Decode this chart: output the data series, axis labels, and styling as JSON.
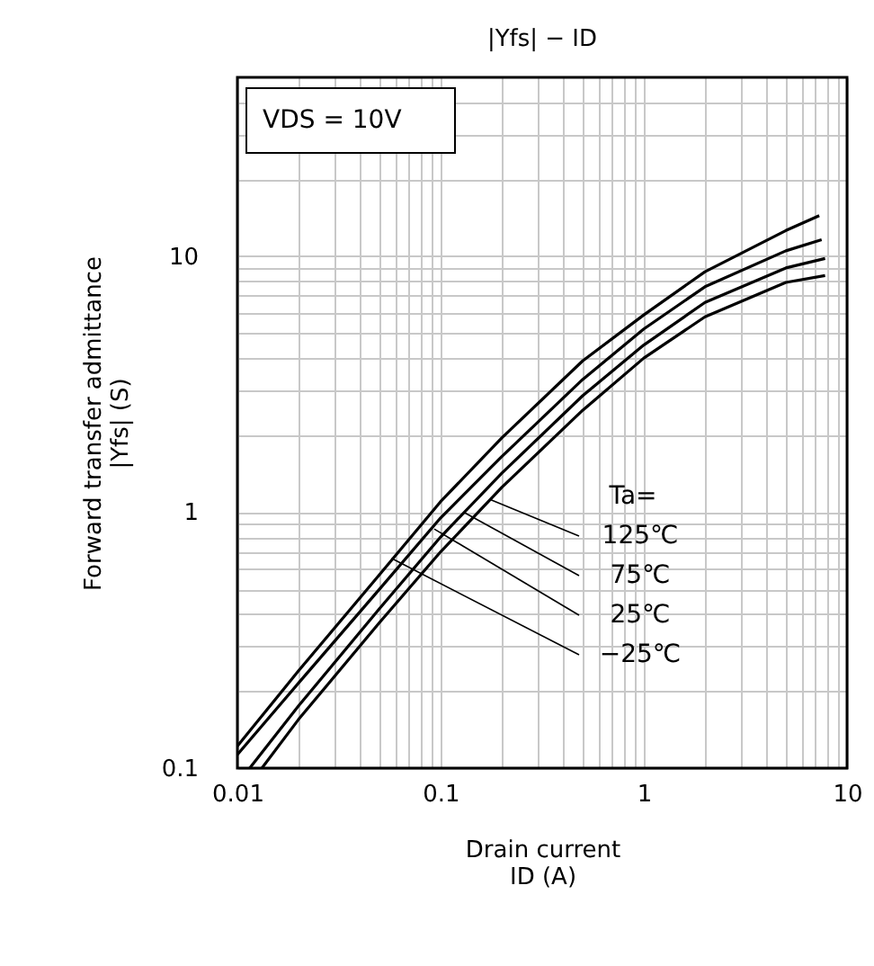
{
  "chart_data": {
    "type": "line",
    "title": "|Yfs| − ID",
    "xlabel": "Drain current\nID (A)",
    "ylabel": "Forward transfer admittance\n|Yfs| (S)",
    "legend_title": "Ta=",
    "log": "xy",
    "grid": true,
    "line_style": "solid",
    "marker": "none",
    "xlim": [
      0.01,
      10
    ],
    "ylim": [
      0.1,
      50
    ],
    "xticks": [
      0.01,
      {
        "value": 0.02,
        "label": null
      },
      {
        "value": 0.03,
        "label": null
      },
      {
        "value": 0.04,
        "label": null
      },
      {
        "value": 0.05,
        "label": null
      },
      {
        "value": 0.06,
        "label": null
      },
      {
        "value": 0.07,
        "label": null
      },
      {
        "value": 0.08,
        "label": null
      },
      {
        "value": 0.09,
        "label": null
      },
      0.1,
      {
        "value": 0.2,
        "label": null
      },
      {
        "value": 0.3,
        "label": null
      },
      {
        "value": 0.4,
        "label": null
      },
      {
        "value": 0.5,
        "label": null
      },
      {
        "value": 0.6,
        "label": null
      },
      {
        "value": 0.7,
        "label": null
      },
      {
        "value": 0.8,
        "label": null
      },
      {
        "value": 0.9,
        "label": null
      },
      1,
      {
        "value": 2,
        "label": null
      },
      {
        "value": 3,
        "label": null
      },
      {
        "value": 4,
        "label": null
      },
      {
        "value": 5,
        "label": null
      },
      {
        "value": 6,
        "label": null
      },
      {
        "value": 7,
        "label": null
      },
      {
        "value": 8,
        "label": null
      },
      {
        "value": 9,
        "label": null
      },
      10
    ],
    "yticks": [
      0.1,
      {
        "value": 0.2,
        "label": null
      },
      {
        "value": 0.3,
        "label": null
      },
      {
        "value": 0.4,
        "label": null
      },
      {
        "value": 0.5,
        "label": null
      },
      {
        "value": 0.6,
        "label": null
      },
      {
        "value": 0.7,
        "label": null
      },
      {
        "value": 0.8,
        "label": null
      },
      {
        "value": 0.9,
        "label": null
      },
      1,
      {
        "value": 2,
        "label": null
      },
      {
        "value": 3,
        "label": null
      },
      {
        "value": 4,
        "label": null
      },
      {
        "value": 5,
        "label": null
      },
      {
        "value": 6,
        "label": null
      },
      {
        "value": 7,
        "label": null
      },
      {
        "value": 8,
        "label": null
      },
      {
        "value": 9,
        "label": null
      },
      10,
      {
        "value": 20,
        "label": null
      },
      {
        "value": 30,
        "label": null
      },
      {
        "value": 40,
        "label": null
      }
    ],
    "series": [
      {
        "color": "#000000",
        "x": [
          0.01,
          0.02,
          0.05,
          0.1,
          0.2,
          0.5,
          1,
          2,
          5,
          7.3
        ],
        "values": [
          0.122,
          0.24,
          0.57,
          1.1,
          1.95,
          3.9,
          5.9,
          8.7,
          12.6,
          14.4
        ]
      },
      {
        "color": "#000000",
        "x": [
          0.01,
          0.02,
          0.05,
          0.1,
          0.2,
          0.5,
          1,
          2,
          5,
          7.5
        ],
        "values": [
          0.113,
          0.215,
          0.5,
          0.95,
          1.65,
          3.3,
          5.2,
          7.6,
          10.5,
          11.6
        ]
      },
      {
        "color": "#000000",
        "x": [
          0.0115,
          0.02,
          0.05,
          0.1,
          0.2,
          0.5,
          1,
          2,
          5,
          7.8
        ],
        "values": [
          0.1,
          0.175,
          0.42,
          0.8,
          1.42,
          2.85,
          4.5,
          6.6,
          9.0,
          9.8
        ]
      },
      {
        "color": "#000000",
        "x": [
          0.0132,
          0.02,
          0.05,
          0.1,
          0.2,
          0.5,
          1,
          2,
          5,
          7.8
        ],
        "values": [
          0.1,
          0.155,
          0.37,
          0.7,
          1.25,
          2.5,
          4.0,
          5.8,
          7.9,
          8.4
        ]
      }
    ],
    "annotations": [
      "VDS = 10V",
      {
        "text": "125℃",
        "x": 0.176,
        "y": 1.12
      },
      {
        "text": "75℃",
        "x": 0.13,
        "y": 1.0
      },
      {
        "text": "25℃",
        "x": 0.093,
        "y": 0.86
      },
      {
        "text": "−25℃",
        "x": 0.0574,
        "y": 0.66
      }
    ]
  }
}
